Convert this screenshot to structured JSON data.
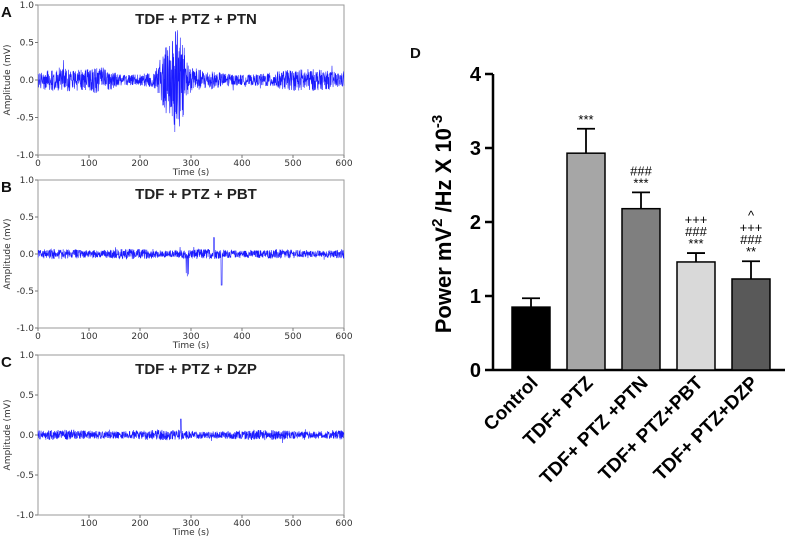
{
  "chart_data": [
    {
      "type": "line",
      "panel": "A",
      "title": "TDF + PTZ +  PTN",
      "xlabel": "Time (s)",
      "ylabel": "Amplitude (mV)",
      "xlim": [
        0,
        600
      ],
      "ylim": [
        -1.0,
        1.0
      ],
      "xticks": [
        "0",
        "100",
        "200",
        "300",
        "400",
        "500",
        "600"
      ],
      "yticks": [
        "1.0",
        "0.5",
        "0.0",
        "-0.5",
        "-1.0"
      ],
      "color": "#1a1aff",
      "signal_description": "EEG trace; baseline oscillation about ±0.2 mV with a burst near 250-290 s reaching about +0.7 mV"
    },
    {
      "type": "line",
      "panel": "B",
      "title": "TDF + PTZ +  PBT",
      "xlabel": "Time (s)",
      "ylabel": "Amplitude (mV)",
      "xlim": [
        0,
        600
      ],
      "ylim": [
        -1.0,
        1.0
      ],
      "xticks": [
        "0",
        "100",
        "200",
        "300",
        "400",
        "500",
        "600"
      ],
      "yticks": [
        "1.0",
        "0.5",
        "0.0",
        "-0.5",
        "-1.0"
      ],
      "color": "#1a1aff",
      "signal_description": "EEG trace; low amplitude about ±0.1 mV with sparse spikes up to about -0.4 mV"
    },
    {
      "type": "line",
      "panel": "C",
      "title": "TDF + PTZ +  DZP",
      "xlabel": "Time (s)",
      "ylabel": "Amplitude (mV)",
      "xlim": [
        0,
        600
      ],
      "ylim": [
        -1.0,
        1.0
      ],
      "xticks": [
        "100",
        "200",
        "300",
        "400",
        "500",
        "600"
      ],
      "yticks": [
        "1.0",
        "0.5",
        "0.0",
        "-0.5",
        "-1.0"
      ],
      "color": "#1a1aff",
      "signal_description": "EEG trace; flat low amplitude about ±0.1 mV"
    },
    {
      "type": "bar",
      "panel": "D",
      "title": "",
      "ylabel": "Power mV 2 /Hz X 10-3",
      "ylabel_parts": {
        "main": "Power mV",
        "sup1": "2",
        "mid": " /Hz X 10",
        "sup2": "-3"
      },
      "ylim": [
        0,
        4
      ],
      "yticks": [
        "0",
        "1",
        "2",
        "3",
        "4"
      ],
      "categories": [
        "Control",
        "TDF+ PTZ",
        "TDF+ PTZ +PTN",
        "TDF+ PTZ+PBT",
        "TDF+ PTZ+DZP"
      ],
      "values": [
        0.85,
        2.93,
        2.18,
        1.46,
        1.23
      ],
      "errors": [
        0.12,
        0.33,
        0.22,
        0.12,
        0.24
      ],
      "colors": [
        "#000000",
        "#a6a6a6",
        "#7f7f7f",
        "#d9d9d9",
        "#595959"
      ],
      "significance": [
        [],
        [
          "***"
        ],
        [
          "###",
          "***"
        ],
        [
          "+++",
          "###",
          "***"
        ],
        [
          "^",
          "+++",
          "###",
          "**"
        ]
      ]
    }
  ]
}
